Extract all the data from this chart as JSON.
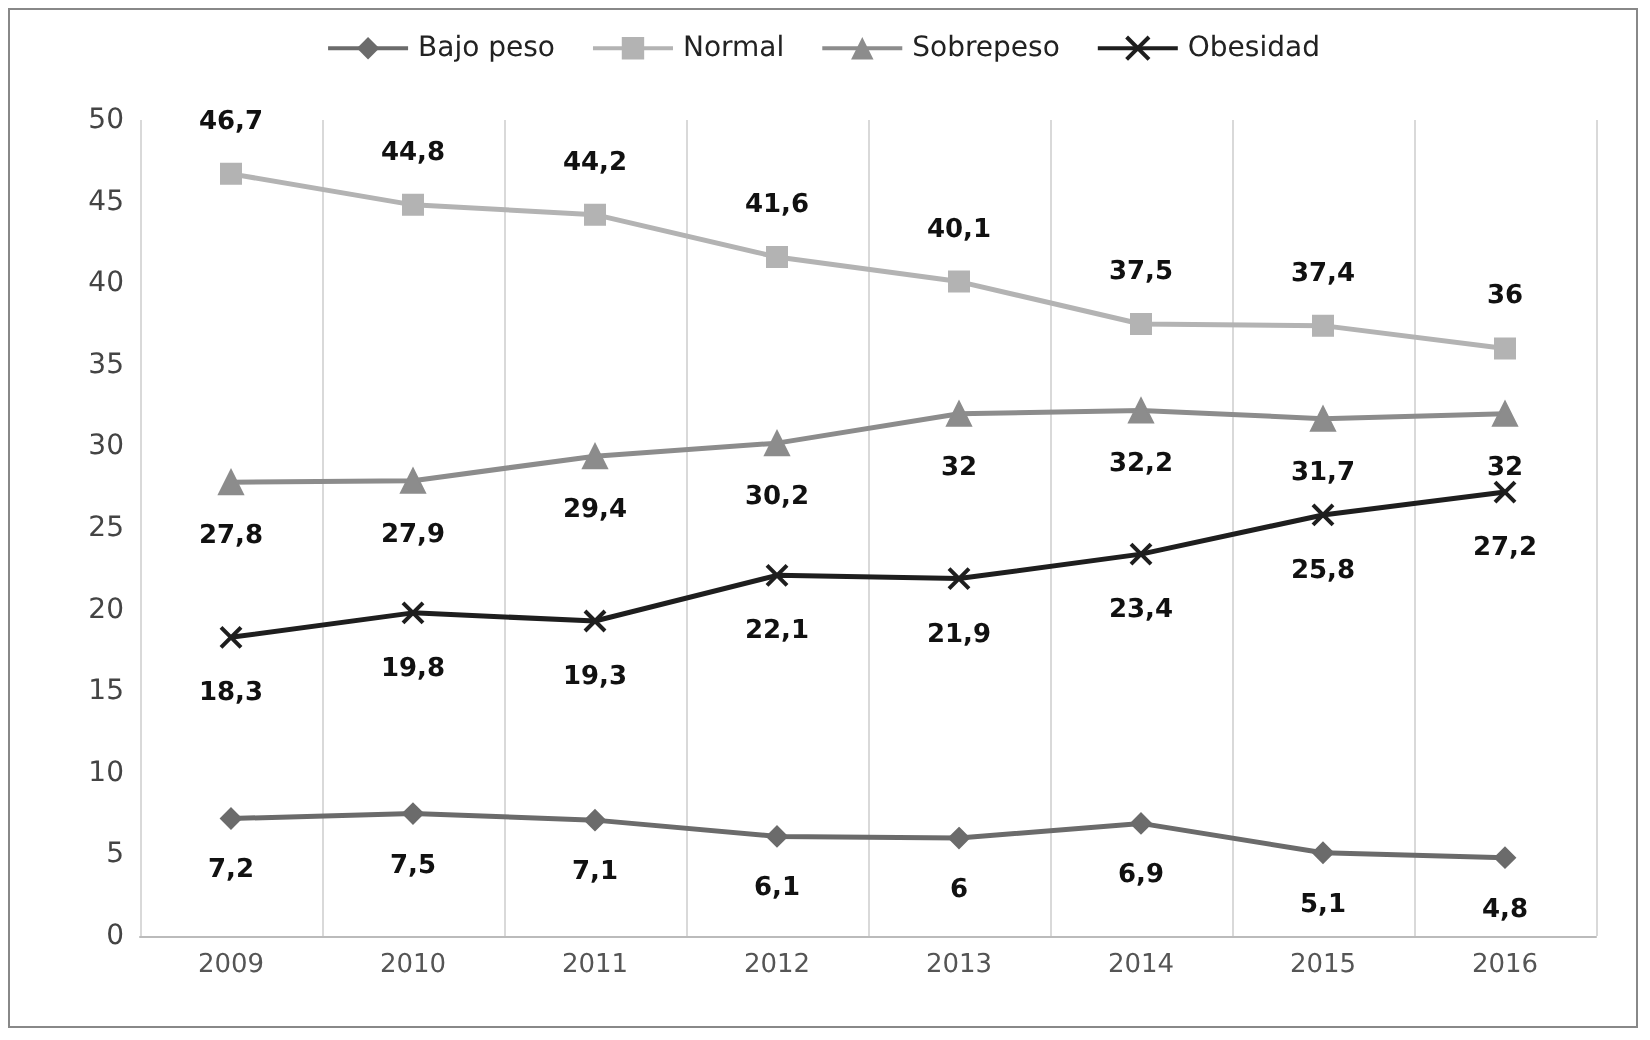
{
  "chart_data": {
    "type": "line",
    "categories": [
      "2009",
      "2010",
      "2011",
      "2012",
      "2013",
      "2014",
      "2015",
      "2016"
    ],
    "series": [
      {
        "name": "Bajo peso",
        "color": "#6b6b6b",
        "marker": "diamond",
        "values": [
          7.2,
          7.5,
          7.1,
          6.1,
          6,
          6.9,
          5.1,
          4.8
        ],
        "value_labels": [
          "7,2",
          "7,5",
          "7,1",
          "6,1",
          "6",
          "6,9",
          "5,1",
          "4,8"
        ]
      },
      {
        "name": "Normal",
        "color": "#b3b3b3",
        "marker": "square",
        "values": [
          46.7,
          44.8,
          44.2,
          41.6,
          40.1,
          37.5,
          37.4,
          36
        ],
        "value_labels": [
          "46,7",
          "44,8",
          "44,2",
          "41,6",
          "40,1",
          "37,5",
          "37,4",
          "36"
        ]
      },
      {
        "name": "Sobrepeso",
        "color": "#8c8c8c",
        "marker": "triangle",
        "values": [
          27.8,
          27.9,
          29.4,
          30.2,
          32,
          32.2,
          31.7,
          32
        ],
        "value_labels": [
          "27,8",
          "27,9",
          "29,4",
          "30,2",
          "32",
          "32,2",
          "31,7",
          "32"
        ]
      },
      {
        "name": "Obesidad",
        "color": "#1e1e1e",
        "marker": "cross",
        "values": [
          18.3,
          19.8,
          19.3,
          22.1,
          21.9,
          23.4,
          25.8,
          27.2
        ],
        "value_labels": [
          "18,3",
          "19,8",
          "19,3",
          "22,1",
          "21,9",
          "23,4",
          "25,8",
          "27,2"
        ]
      }
    ],
    "ylim": [
      0,
      50
    ],
    "yticks": [
      0,
      5,
      10,
      15,
      20,
      25,
      30,
      35,
      40,
      45,
      50
    ],
    "grid": "x",
    "legend": "top"
  }
}
